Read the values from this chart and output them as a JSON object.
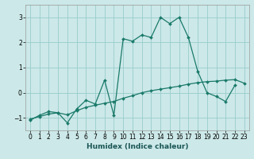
{
  "xlabel": "Humidex (Indice chaleur)",
  "bg_color": "#cce8e8",
  "grid_color": "#99cccc",
  "line_color": "#1a7a6a",
  "xlim": [
    -0.5,
    23.5
  ],
  "ylim": [
    -1.5,
    3.5
  ],
  "yticks": [
    -1,
    0,
    1,
    2,
    3
  ],
  "xticks": [
    0,
    1,
    2,
    3,
    4,
    5,
    6,
    7,
    8,
    9,
    10,
    11,
    12,
    13,
    14,
    15,
    16,
    17,
    18,
    19,
    20,
    21,
    22,
    23
  ],
  "line1_x": [
    0,
    1,
    2,
    3,
    4,
    5,
    6,
    7,
    8,
    9,
    10,
    11,
    12,
    13,
    14,
    15,
    16,
    17,
    18,
    19,
    20,
    21,
    22
  ],
  "line1_y": [
    -1.1,
    -0.9,
    -0.75,
    -0.8,
    -1.2,
    -0.65,
    -0.3,
    -0.45,
    0.5,
    -0.9,
    2.15,
    2.05,
    2.3,
    2.2,
    3.0,
    2.75,
    3.0,
    2.2,
    0.85,
    0.0,
    -0.15,
    -0.35,
    0.3
  ],
  "line2_x": [
    0,
    1,
    2,
    3,
    4,
    5,
    6,
    7,
    8,
    9,
    10,
    11,
    12,
    13,
    14,
    15,
    16,
    17,
    18,
    19,
    20,
    21,
    22,
    23
  ],
  "line2_y": [
    -1.05,
    -0.95,
    -0.85,
    -0.8,
    -0.88,
    -0.72,
    -0.58,
    -0.5,
    -0.42,
    -0.35,
    -0.22,
    -0.12,
    0.0,
    0.08,
    0.14,
    0.2,
    0.26,
    0.34,
    0.4,
    0.44,
    0.46,
    0.5,
    0.52,
    0.38
  ],
  "tick_fontsize": 5.5,
  "xlabel_fontsize": 6.5
}
